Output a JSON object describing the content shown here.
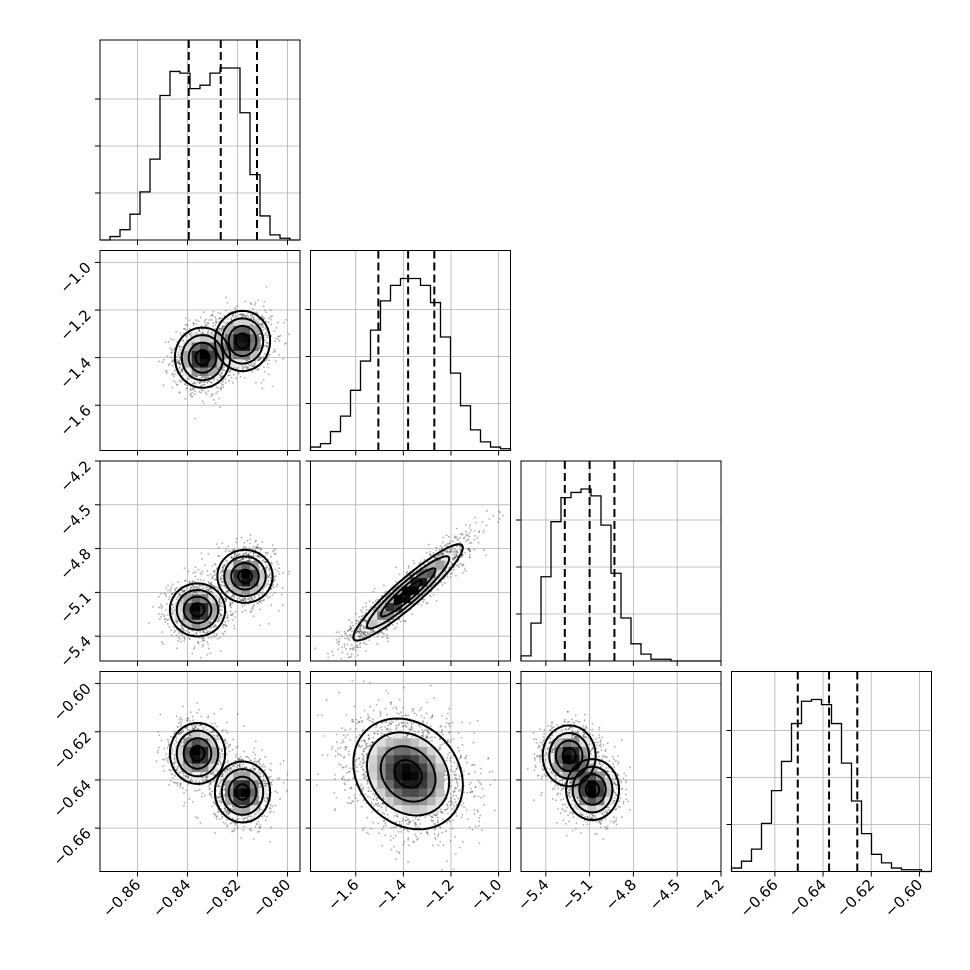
{
  "chart_data": {
    "type": "corner",
    "title": "",
    "parameters": [
      {
        "label": "",
        "range": [
          -0.875,
          -0.795
        ],
        "ticks": [
          -0.86,
          -0.84,
          -0.82,
          -0.8
        ],
        "tick_labels": [
          "−0.86",
          "−0.84",
          "−0.82",
          "−0.80"
        ],
        "quantiles": [
          -0.8395,
          -0.8267,
          -0.8122
        ],
        "modes": [
          -0.834,
          -0.818
        ],
        "sd": 0.0065
      },
      {
        "label": "",
        "range": [
          -1.79,
          -0.95
        ],
        "ticks": [
          -1.6,
          -1.4,
          -1.2,
          -1.0
        ],
        "tick_labels": [
          "−1.6",
          "−1.4",
          "−1.2",
          "−1.0"
        ],
        "quantiles": [
          -1.505,
          -1.38,
          -1.27
        ],
        "mode": -1.38,
        "sd": 0.115
      },
      {
        "label": "",
        "range": [
          -5.57,
          -4.2
        ],
        "ticks": [
          -5.4,
          -5.1,
          -4.8,
          -4.5,
          -4.2
        ],
        "tick_labels": [
          "−5.4",
          "−5.1",
          "−4.8",
          "−4.5",
          "−4.2"
        ],
        "quantiles": [
          -5.27,
          -5.1,
          -4.93
        ],
        "mode": -5.1,
        "sd": 0.165
      },
      {
        "label": "",
        "range": [
          -0.678,
          -0.595
        ],
        "ticks": [
          -0.66,
          -0.64,
          -0.62,
          -0.6
        ],
        "tick_labels": [
          "−0.66",
          "−0.64",
          "−0.62",
          "−0.60"
        ],
        "quantiles": [
          -0.6505,
          -0.6375,
          -0.6258
        ],
        "mode": -0.6375,
        "sd": 0.0115
      }
    ],
    "histograms": [
      {
        "param": 0,
        "bins": 20,
        "counts": [
          0,
          0.02,
          0.06,
          0.15,
          0.28,
          0.47,
          0.84,
          0.98,
          0.97,
          0.88,
          0.9,
          0.97,
          1.0,
          1.0,
          0.74,
          0.38,
          0.14,
          0.03,
          0.01,
          0
        ]
      },
      {
        "param": 1,
        "bins": 20,
        "counts": [
          0.02,
          0.04,
          0.11,
          0.2,
          0.35,
          0.52,
          0.7,
          0.87,
          0.96,
          1.0,
          1.0,
          0.96,
          0.86,
          0.66,
          0.45,
          0.26,
          0.12,
          0.05,
          0.02,
          0.01
        ]
      },
      {
        "param": 2,
        "bins": 20,
        "counts": [
          0.03,
          0.22,
          0.49,
          0.81,
          0.95,
          0.98,
          1.0,
          0.96,
          0.79,
          0.51,
          0.25,
          0.1,
          0.04,
          0.01,
          0.01,
          0,
          0,
          0,
          0,
          0
        ]
      },
      {
        "param": 3,
        "bins": 20,
        "counts": [
          0.02,
          0.06,
          0.13,
          0.28,
          0.47,
          0.64,
          0.86,
          0.99,
          1.0,
          0.97,
          0.86,
          0.63,
          0.41,
          0.22,
          0.1,
          0.05,
          0.02,
          0.01,
          0.01,
          0
        ]
      }
    ],
    "pairs": [
      {
        "x": 0,
        "y": 1,
        "contour_levels": 4,
        "blobs": [
          {
            "mx": -0.834,
            "my": -1.4
          },
          {
            "mx": -0.818,
            "my": -1.33
          }
        ],
        "correlation": 0.1
      },
      {
        "x": 0,
        "y": 2,
        "contour_levels": 4,
        "blobs": [
          {
            "mx": -0.836,
            "my": -5.22
          },
          {
            "mx": -0.817,
            "my": -4.99
          }
        ],
        "correlation": 0.0
      },
      {
        "x": 1,
        "y": 2,
        "contour_levels": 4,
        "correlation": 0.93
      },
      {
        "x": 0,
        "y": 3,
        "contour_levels": 4,
        "blobs": [
          {
            "mx": -0.836,
            "my": -0.629
          },
          {
            "mx": -0.818,
            "my": -0.645
          }
        ],
        "correlation": 0.0
      },
      {
        "x": 1,
        "y": 3,
        "contour_levels": 4,
        "correlation": -0.2
      },
      {
        "x": 2,
        "y": 3,
        "contour_levels": 4,
        "blobs": [
          {
            "mx": -5.24,
            "my": -0.63
          },
          {
            "mx": -5.08,
            "my": -0.644
          }
        ],
        "correlation": 0.0
      }
    ],
    "grid": true,
    "quantile_lines": "dashed"
  }
}
